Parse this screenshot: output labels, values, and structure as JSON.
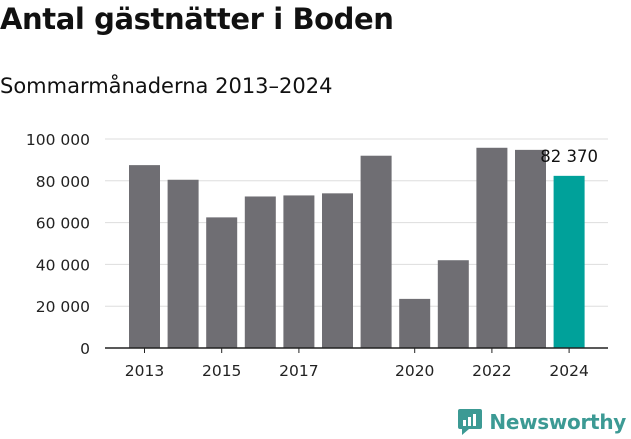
{
  "header": {
    "title": "Antal gästnätter i Boden",
    "subtitle": "Sommarmånaderna 2013–2024"
  },
  "brand": {
    "name": "Newsworthy",
    "icon": "newsworthy-logo-icon",
    "color": "#3c9a94"
  },
  "colors": {
    "bar": "#6f6e73",
    "highlight": "#00a19a",
    "grid": "#dddddd",
    "axis": "#222222"
  },
  "chart_data": {
    "type": "bar",
    "categories": [
      "2013",
      "2014",
      "2015",
      "2016",
      "2017",
      "2018",
      "2019",
      "2020",
      "2021",
      "2022",
      "2023",
      "2024"
    ],
    "values": [
      87500,
      80500,
      62500,
      72500,
      73000,
      74000,
      92000,
      23500,
      42000,
      95800,
      94800,
      82370
    ],
    "highlight_index": 11,
    "x_tick_labels": [
      "2013",
      "",
      "2015",
      "",
      "2017",
      "",
      "",
      "2020",
      "",
      "2022",
      "",
      "2024"
    ],
    "y_ticks": [
      0,
      20000,
      40000,
      60000,
      80000,
      100000
    ],
    "y_tick_labels": [
      "0",
      "20 000",
      "40 000",
      "60 000",
      "80 000",
      "100 000"
    ],
    "ylim": [
      0,
      100000
    ],
    "annotations": [
      {
        "index": 11,
        "text": "82 370"
      }
    ],
    "grid": true,
    "legend": "none",
    "xlabel": "",
    "ylabel": ""
  }
}
